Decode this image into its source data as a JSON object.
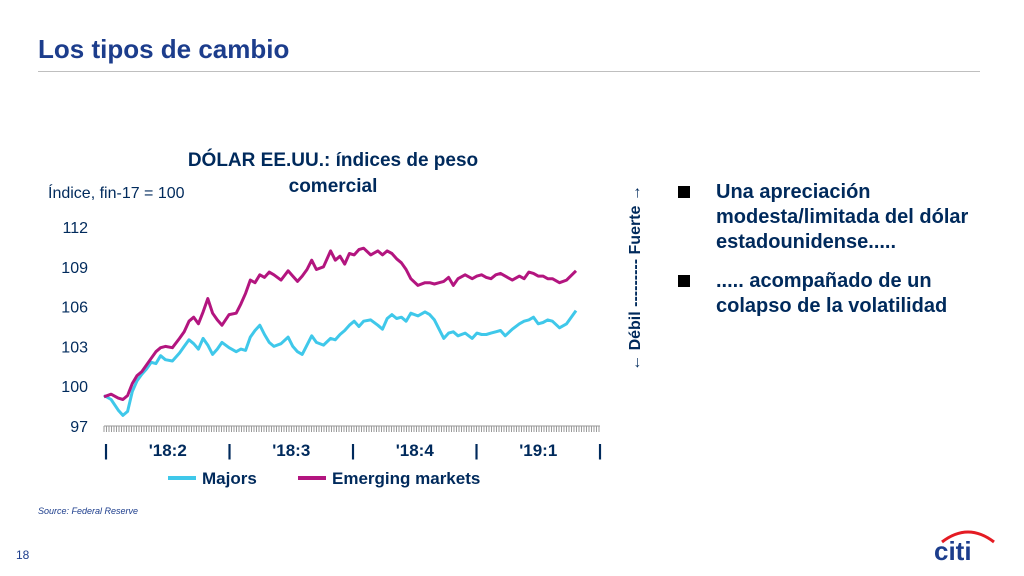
{
  "slide": {
    "title": "Los tipos de cambio",
    "source": "Source: Federal Reserve",
    "page_number": "18",
    "logo_text": "citi"
  },
  "bullets": [
    {
      "text": "Una apreciación modesta/limitada del dólar estadounidense....."
    },
    {
      "text": "..... acompañado de un colapso de la volatilidad"
    }
  ],
  "chart_data": {
    "type": "line",
    "title": "DÓLAR EE.UU.: índices de peso comercial",
    "ylabel": "Índice, fin-17 = 100",
    "right_axis_label": "← Débil --------- Fuerte →",
    "ylim": [
      97,
      112
    ],
    "yticks": [
      97,
      100,
      103,
      106,
      109,
      112
    ],
    "x_range": [
      0,
      1
    ],
    "x_tick_labels": [
      "|",
      "'18:2",
      "|",
      "'18:3",
      "|",
      "'18:4",
      "|",
      "'19:1",
      "|"
    ],
    "grid": false,
    "legend_position": "bottom",
    "colors": {
      "Majors": "#3fc8ea",
      "Emerging markets": "#b3157f"
    },
    "series": [
      {
        "name": "Majors",
        "x": [
          0.0,
          0.015,
          0.03,
          0.04,
          0.05,
          0.06,
          0.07,
          0.08,
          0.09,
          0.1,
          0.11,
          0.12,
          0.13,
          0.145,
          0.16,
          0.17,
          0.18,
          0.19,
          0.2,
          0.21,
          0.22,
          0.23,
          0.24,
          0.25,
          0.265,
          0.28,
          0.29,
          0.3,
          0.31,
          0.32,
          0.33,
          0.34,
          0.35,
          0.36,
          0.375,
          0.39,
          0.4,
          0.41,
          0.42,
          0.43,
          0.44,
          0.45,
          0.465,
          0.48,
          0.49,
          0.5,
          0.51,
          0.52,
          0.53,
          0.54,
          0.55,
          0.565,
          0.58,
          0.59,
          0.6,
          0.61,
          0.62,
          0.63,
          0.64,
          0.65,
          0.665,
          0.68,
          0.69,
          0.7,
          0.71,
          0.72,
          0.73,
          0.74,
          0.75,
          0.765,
          0.78,
          0.79,
          0.8,
          0.81,
          0.82,
          0.83,
          0.84,
          0.85,
          0.865,
          0.88,
          0.89,
          0.9,
          0.91,
          0.92,
          0.93,
          0.94,
          0.95,
          0.965,
          0.98,
          1.0
        ],
        "values": [
          99.3,
          99.0,
          98.2,
          97.8,
          98.1,
          99.6,
          100.4,
          100.9,
          101.3,
          101.8,
          101.7,
          102.3,
          102.0,
          101.9,
          102.5,
          103.0,
          103.5,
          103.2,
          102.8,
          103.6,
          103.1,
          102.4,
          102.8,
          103.3,
          102.9,
          102.6,
          102.8,
          102.7,
          103.7,
          104.2,
          104.6,
          103.9,
          103.3,
          103.0,
          103.2,
          103.7,
          103.0,
          102.6,
          102.4,
          103.1,
          103.8,
          103.3,
          103.1,
          103.6,
          103.5,
          103.9,
          104.2,
          104.6,
          104.9,
          104.5,
          104.9,
          105.0,
          104.6,
          104.3,
          105.1,
          105.4,
          105.1,
          105.2,
          104.9,
          105.5,
          105.3,
          105.6,
          105.4,
          105.0,
          104.3,
          103.6,
          104.0,
          104.1,
          103.8,
          104.0,
          103.6,
          104.0,
          103.9,
          103.9,
          104.0,
          104.1,
          104.2,
          103.8,
          104.3,
          104.7,
          104.9,
          105.0,
          105.2,
          104.7,
          104.8,
          105.0,
          104.9,
          104.4,
          104.7,
          105.7
        ]
      },
      {
        "name": "Emerging markets",
        "x": [
          0.0,
          0.015,
          0.03,
          0.04,
          0.05,
          0.06,
          0.07,
          0.08,
          0.09,
          0.1,
          0.11,
          0.12,
          0.13,
          0.145,
          0.16,
          0.17,
          0.18,
          0.19,
          0.2,
          0.21,
          0.22,
          0.23,
          0.24,
          0.25,
          0.265,
          0.28,
          0.29,
          0.3,
          0.31,
          0.32,
          0.33,
          0.34,
          0.35,
          0.36,
          0.375,
          0.39,
          0.4,
          0.41,
          0.42,
          0.43,
          0.44,
          0.45,
          0.465,
          0.48,
          0.49,
          0.5,
          0.51,
          0.52,
          0.53,
          0.54,
          0.55,
          0.565,
          0.58,
          0.59,
          0.6,
          0.61,
          0.62,
          0.63,
          0.64,
          0.65,
          0.665,
          0.68,
          0.69,
          0.7,
          0.71,
          0.72,
          0.73,
          0.74,
          0.75,
          0.765,
          0.78,
          0.79,
          0.8,
          0.81,
          0.82,
          0.83,
          0.84,
          0.85,
          0.865,
          0.88,
          0.89,
          0.9,
          0.91,
          0.92,
          0.93,
          0.94,
          0.95,
          0.965,
          0.98,
          1.0
        ],
        "values": [
          99.2,
          99.4,
          99.1,
          99.0,
          99.3,
          100.2,
          100.8,
          101.1,
          101.6,
          102.1,
          102.6,
          102.9,
          103.0,
          102.9,
          103.6,
          104.1,
          104.9,
          105.2,
          104.7,
          105.6,
          106.6,
          105.5,
          105.0,
          104.6,
          105.4,
          105.5,
          106.2,
          107.0,
          108.0,
          107.8,
          108.4,
          108.2,
          108.6,
          108.4,
          108.0,
          108.7,
          108.3,
          107.9,
          108.3,
          108.8,
          109.5,
          108.8,
          109.0,
          110.2,
          109.5,
          109.8,
          109.2,
          110.0,
          109.9,
          110.3,
          110.4,
          109.9,
          110.2,
          109.9,
          110.2,
          110.0,
          109.6,
          109.3,
          108.8,
          108.1,
          107.6,
          107.8,
          107.8,
          107.7,
          107.8,
          107.9,
          108.2,
          107.6,
          108.1,
          108.4,
          108.1,
          108.3,
          108.4,
          108.2,
          108.1,
          108.4,
          108.5,
          108.3,
          108.0,
          108.3,
          108.1,
          108.6,
          108.5,
          108.3,
          108.3,
          108.1,
          108.1,
          107.8,
          108.0,
          108.7
        ]
      }
    ]
  }
}
